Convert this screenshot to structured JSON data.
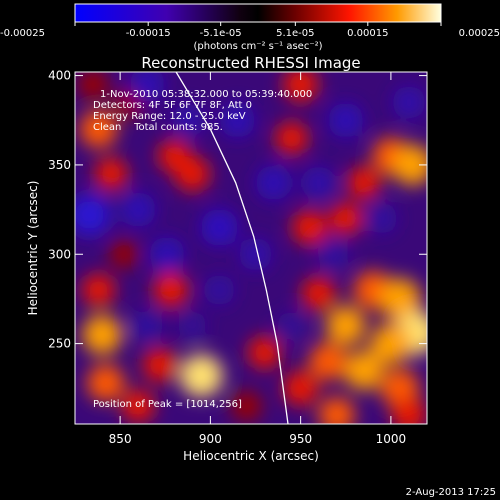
{
  "chart_data": {
    "type": "heatmap",
    "title": "Reconstructed RHESSI Image",
    "xlabel": "Heliocentric X (arcsec)",
    "ylabel": "Heliocentric Y (arcsec)",
    "xlim": [
      825,
      1020
    ],
    "ylim": [
      205,
      402
    ],
    "xticks": [
      "850",
      "900",
      "950",
      "1000"
    ],
    "yticks": [
      "250",
      "300",
      "350",
      "400"
    ],
    "colorbar": {
      "ticks": [
        "-0.00025",
        "-0.00015",
        "-5.1e-05",
        "5.1e-05",
        "0.00015",
        "0.00025"
      ],
      "unit_label": "(photons cm⁻² s⁻¹ asec⁻²)",
      "range": [
        -0.00025,
        0.00025
      ]
    },
    "info_lines": [
      "1-Nov-2010 05:38:32.000 to 05:39:40.000",
      "Detectors: 4F 5F 6F 7F 8F, Att 0",
      "Energy Range: 12.0 - 25.0 keV",
      "Clean    Total counts: 985."
    ],
    "peak_label": "Position of Peak = [1014,256]",
    "limb_curve": [
      [
        881,
        402
      ],
      [
        900,
        370
      ],
      [
        914,
        340
      ],
      [
        924,
        310
      ],
      [
        931,
        280
      ],
      [
        937,
        250
      ],
      [
        941,
        220
      ],
      [
        943,
        205
      ]
    ],
    "features": [
      {
        "x": 838,
        "y": 370,
        "v": 0.7
      },
      {
        "x": 855,
        "y": 385,
        "v": 0.4
      },
      {
        "x": 845,
        "y": 345,
        "v": 0.5
      },
      {
        "x": 833,
        "y": 322,
        "v": -0.9
      },
      {
        "x": 860,
        "y": 325,
        "v": -0.6
      },
      {
        "x": 852,
        "y": 300,
        "v": 0.3
      },
      {
        "x": 838,
        "y": 280,
        "v": 0.5
      },
      {
        "x": 840,
        "y": 255,
        "v": 0.8
      },
      {
        "x": 842,
        "y": 228,
        "v": 0.7
      },
      {
        "x": 865,
        "y": 260,
        "v": -0.4
      },
      {
        "x": 872,
        "y": 238,
        "v": 0.55
      },
      {
        "x": 880,
        "y": 355,
        "v": 0.5
      },
      {
        "x": 876,
        "y": 300,
        "v": -0.6
      },
      {
        "x": 888,
        "y": 375,
        "v": -0.5
      },
      {
        "x": 890,
        "y": 345,
        "v": 0.6
      },
      {
        "x": 878,
        "y": 280,
        "v": 0.6
      },
      {
        "x": 895,
        "y": 232,
        "v": 0.95
      },
      {
        "x": 890,
        "y": 260,
        "v": -0.3
      },
      {
        "x": 905,
        "y": 315,
        "v": -0.7
      },
      {
        "x": 915,
        "y": 375,
        "v": -0.6
      },
      {
        "x": 925,
        "y": 300,
        "v": -0.5
      },
      {
        "x": 935,
        "y": 340,
        "v": -0.6
      },
      {
        "x": 930,
        "y": 245,
        "v": 0.5
      },
      {
        "x": 905,
        "y": 280,
        "v": -0.4
      },
      {
        "x": 950,
        "y": 395,
        "v": 0.6
      },
      {
        "x": 945,
        "y": 365,
        "v": 0.5
      },
      {
        "x": 960,
        "y": 340,
        "v": -0.5
      },
      {
        "x": 955,
        "y": 315,
        "v": 0.6
      },
      {
        "x": 968,
        "y": 300,
        "v": -0.4
      },
      {
        "x": 975,
        "y": 375,
        "v": -0.6
      },
      {
        "x": 985,
        "y": 340,
        "v": 0.5
      },
      {
        "x": 1000,
        "y": 355,
        "v": 0.7
      },
      {
        "x": 1012,
        "y": 350,
        "v": 0.85
      },
      {
        "x": 1010,
        "y": 385,
        "v": -0.5
      },
      {
        "x": 995,
        "y": 320,
        "v": -0.4
      },
      {
        "x": 975,
        "y": 320,
        "v": 0.5
      },
      {
        "x": 960,
        "y": 278,
        "v": 0.55
      },
      {
        "x": 975,
        "y": 260,
        "v": 0.8
      },
      {
        "x": 990,
        "y": 280,
        "v": 0.75
      },
      {
        "x": 1005,
        "y": 275,
        "v": 0.9
      },
      {
        "x": 1014,
        "y": 256,
        "v": 1.0
      },
      {
        "x": 1000,
        "y": 250,
        "v": 0.85
      },
      {
        "x": 985,
        "y": 235,
        "v": 0.8
      },
      {
        "x": 965,
        "y": 240,
        "v": 0.7
      },
      {
        "x": 950,
        "y": 225,
        "v": 0.6
      },
      {
        "x": 1005,
        "y": 225,
        "v": 0.75
      },
      {
        "x": 970,
        "y": 210,
        "v": 0.65
      },
      {
        "x": 1010,
        "y": 210,
        "v": 0.6
      },
      {
        "x": 920,
        "y": 215,
        "v": 0.4
      },
      {
        "x": 860,
        "y": 215,
        "v": 0.5
      },
      {
        "x": 945,
        "y": 260,
        "v": -0.3
      },
      {
        "x": 865,
        "y": 395,
        "v": -0.6
      },
      {
        "x": 835,
        "y": 395,
        "v": 0.4
      }
    ]
  },
  "timestamp": "2-Aug-2013 17:25"
}
